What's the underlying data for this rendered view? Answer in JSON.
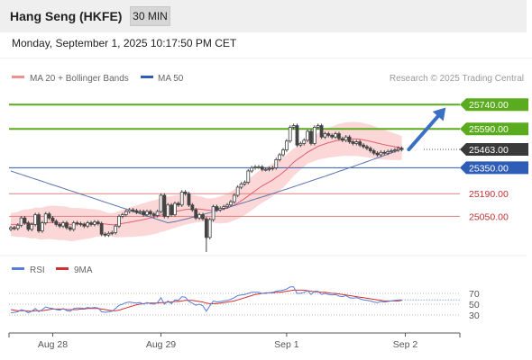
{
  "header": {
    "title": "Hang Seng (HKFE)",
    "timeframe": "30 MIN",
    "datetime": "Monday, September 1, 2025 10:17:50 PM CET"
  },
  "legend": {
    "ma20_label": "MA 20 + Bollinger Bands",
    "ma50_label": "MA 50",
    "copyright": "Research © 2025 Trading Central",
    "rsi_label": "RSI",
    "ma9_label": "9MA"
  },
  "colors": {
    "green": "#5aab1e",
    "blue": "#2e5db8",
    "red": "#e08080",
    "candle": "#444444",
    "bands": "#fbd0d0",
    "ma20": "#e06070",
    "ma50": "#5a72b0",
    "arrow": "#3b6fc4",
    "rsi": "#5a7fd8",
    "rsi_ma": "#d03030",
    "current_bg": "#3a3a3a"
  },
  "chart_data": [
    {
      "type": "candlestick",
      "name": "main",
      "ylim": [
        24830,
        25830
      ],
      "xlim": [
        0,
        117
      ],
      "x_ticks": [
        {
          "x": 12,
          "label": "Aug 28"
        },
        {
          "x": 43,
          "label": "Aug 29"
        },
        {
          "x": 79,
          "label": "Sep 1"
        },
        {
          "x": 113,
          "label": "Sep 2"
        }
      ],
      "levels": [
        {
          "value": 25740,
          "label": "25740.00",
          "kind": "resistance"
        },
        {
          "value": 25590,
          "label": "25590.00",
          "kind": "pivot"
        },
        {
          "value": 25463,
          "label": "25463.00",
          "kind": "current"
        },
        {
          "value": 25350,
          "label": "25350.00",
          "kind": "support-blue"
        },
        {
          "value": 25190,
          "label": "25190.00",
          "kind": "support"
        },
        {
          "value": 25050,
          "label": "25050.00",
          "kind": "support"
        }
      ],
      "arrow": {
        "from": [
          114,
          25463
        ],
        "to": [
          125,
          25740
        ]
      },
      "close": [
        24980,
        24975,
        24995,
        25040,
        25010,
        24970,
        25000,
        25060,
        24960,
        25010,
        25065,
        25040,
        25020,
        25000,
        24990,
        25010,
        24980,
        24970,
        25010,
        25005,
        25000,
        24990,
        25010,
        25000,
        25015,
        25005,
        24940,
        24935,
        24945,
        24950,
        24990,
        25050,
        25060,
        25080,
        25090,
        25085,
        25075,
        25080,
        25060,
        25080,
        25065,
        25055,
        25080,
        25180,
        25050,
        25120,
        25060,
        25130,
        25120,
        25200,
        25190,
        25120,
        25090,
        25040,
        25060,
        25035,
        24920,
        25030,
        25110,
        25090,
        25100,
        25110,
        25120,
        25140,
        25180,
        25230,
        25250,
        25260,
        25330,
        25350,
        25355,
        25355,
        25340,
        25340,
        25345,
        25350,
        25400,
        25430,
        25460,
        25515,
        25600,
        25610,
        25490,
        25500,
        25520,
        25575,
        25500,
        25600,
        25610,
        25540,
        25560,
        25550,
        25540,
        25560,
        25530,
        25520,
        25540,
        25510,
        25500,
        25510,
        25490,
        25480,
        25470,
        25455,
        25440,
        25430,
        25445,
        25440,
        25450,
        25455,
        25460,
        25470,
        25463
      ],
      "ma20": [
        25000,
        25000,
        25000,
        25005,
        25007,
        25005,
        25005,
        25010,
        25005,
        25005,
        25010,
        25012,
        25012,
        25010,
        25008,
        25008,
        25005,
        25000,
        25000,
        25002,
        25003,
        25004,
        25005,
        25005,
        25008,
        25008,
        25006,
        25003,
        25000,
        24998,
        24998,
        25002,
        25006,
        25010,
        25014,
        25018,
        25022,
        25026,
        25030,
        25035,
        25040,
        25045,
        25050,
        25058,
        25062,
        25068,
        25074,
        25080,
        25084,
        25088,
        25092,
        25094,
        25095,
        25095,
        25095,
        25093,
        25090,
        25088,
        25087,
        25087,
        25090,
        25095,
        25100,
        25110,
        25120,
        25132,
        25146,
        25160,
        25176,
        25192,
        25208,
        25224,
        25238,
        25250,
        25262,
        25275,
        25290,
        25305,
        25322,
        25340,
        25362,
        25384,
        25400,
        25415,
        25430,
        25446,
        25458,
        25470,
        25482,
        25490,
        25497,
        25505,
        25510,
        25516,
        25520,
        25524,
        25527,
        25528,
        25528,
        25528,
        25525,
        25522,
        25518,
        25513,
        25508,
        25502,
        25497,
        25492,
        25488,
        25484,
        25480,
        25476,
        25472
      ],
      "ma50_note": "MA 50 line runs from ~25330 at left down to ~25010 near Aug 29 then rises to ~25465 at right"
    },
    {
      "type": "line",
      "name": "rsi",
      "ylim": [
        10,
        90
      ],
      "y_ticks": [
        70,
        50,
        30
      ],
      "rsi": [
        34,
        35,
        36,
        40,
        38,
        34,
        37,
        42,
        36,
        40,
        45,
        43,
        42,
        40,
        39,
        42,
        38,
        37,
        42,
        43,
        43,
        42,
        44,
        43,
        44,
        43,
        36,
        35,
        36,
        37,
        42,
        48,
        50,
        53,
        54,
        53,
        52,
        53,
        50,
        53,
        51,
        50,
        53,
        62,
        50,
        56,
        51,
        58,
        57,
        64,
        63,
        55,
        52,
        48,
        50,
        47,
        37,
        47,
        56,
        54,
        55,
        56,
        57,
        59,
        62,
        66,
        67,
        68,
        70,
        72,
        72,
        72,
        70,
        70,
        71,
        72,
        74,
        75,
        76,
        78,
        82,
        82,
        70,
        70,
        72,
        75,
        68,
        74,
        74,
        68,
        70,
        68,
        67,
        68,
        65,
        64,
        66,
        62,
        61,
        62,
        60,
        58,
        57,
        56,
        54,
        53,
        55,
        54,
        55,
        56,
        57,
        58,
        58
      ],
      "rsi_ma": [
        40,
        39,
        38,
        38,
        38,
        37,
        37,
        38,
        38,
        38,
        39,
        40,
        41,
        41,
        41,
        41,
        40,
        40,
        40,
        40,
        41,
        41,
        42,
        42,
        42,
        42,
        41,
        40,
        39,
        38,
        38,
        39,
        41,
        43,
        45,
        47,
        49,
        50,
        51,
        52,
        52,
        52,
        52,
        53,
        53,
        54,
        54,
        55,
        55,
        56,
        57,
        57,
        57,
        56,
        55,
        54,
        52,
        51,
        51,
        51,
        52,
        53,
        54,
        55,
        56,
        58,
        60,
        62,
        64,
        66,
        68,
        69,
        70,
        71,
        71,
        71,
        72,
        72,
        73,
        74,
        75,
        76,
        76,
        76,
        76,
        75,
        74,
        73,
        73,
        72,
        72,
        71,
        70,
        70,
        69,
        68,
        67,
        66,
        65,
        64,
        63,
        62,
        61,
        60,
        59,
        58,
        57,
        56,
        56,
        56,
        56,
        56,
        57
      ]
    }
  ]
}
